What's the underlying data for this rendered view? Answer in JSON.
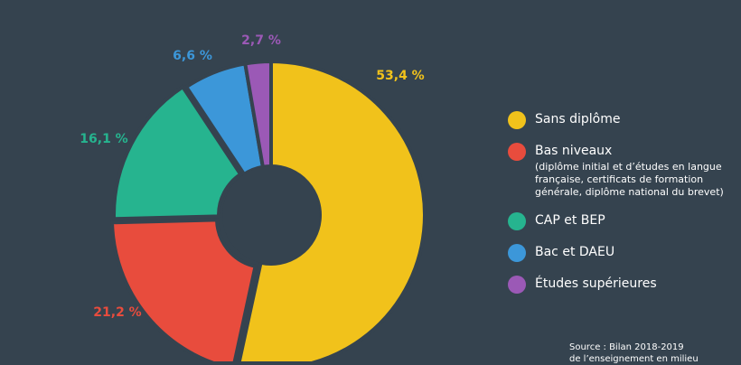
{
  "chart_data": {
    "type": "pie",
    "series": [
      {
        "label": "Sans diplôme",
        "value": 53.4,
        "display": "53,4 %",
        "color": "#f1c21b"
      },
      {
        "label": "Bas niveaux",
        "value": 21.2,
        "display": "21,2 %",
        "color": "#e84c3d",
        "sublabel": "(diplôme initial et d’études en langue française, certificats de formation générale, diplôme national du brevet)"
      },
      {
        "label": "CAP et BEP",
        "value": 16.1,
        "display": "16,1 %",
        "color": "#26b48f"
      },
      {
        "label": "Bac et DAEU",
        "value": 6.6,
        "display": "6,6 %",
        "color": "#3c97d9"
      },
      {
        "label": "Études supérieures",
        "value": 2.7,
        "display": "2,7 %",
        "color": "#9b59b6"
      }
    ],
    "legend": "right"
  },
  "source": {
    "line1": "Source : Bilan 2018-2019",
    "line2": "de l’enseignement en milieu"
  }
}
